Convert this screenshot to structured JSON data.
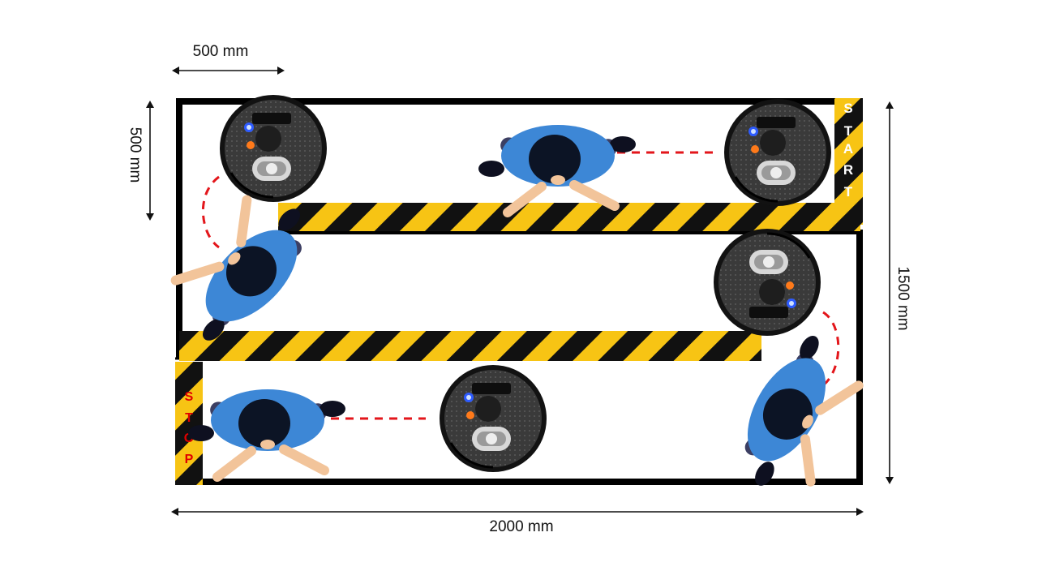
{
  "dimensions": {
    "top_width": "500 mm",
    "left_height": "500 mm",
    "right_height": "1500 mm",
    "bottom_width": "2000 mm"
  },
  "labels": {
    "start": "START",
    "stop": "STOP"
  },
  "colors": {
    "wall": "#000000",
    "stripe_yellow": "#f7c414",
    "stripe_black": "#111111",
    "path_dash": "#e3161b",
    "shirt": "#3d87d6",
    "hair": "#0c1425",
    "pants": "#3c3f63",
    "skin": "#f2c49a",
    "robot_body": "#2b2b2b",
    "robot_rim": "#111111",
    "stop_text": "#e00000",
    "start_text": "#ffffff"
  },
  "icons": [
    "robot-vacuum-icon",
    "person-topdown-icon"
  ]
}
